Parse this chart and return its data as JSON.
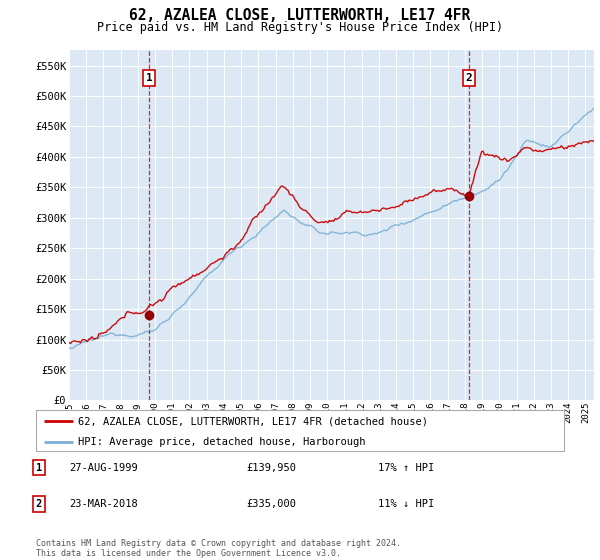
{
  "title": "62, AZALEA CLOSE, LUTTERWORTH, LE17 4FR",
  "subtitle": "Price paid vs. HM Land Registry's House Price Index (HPI)",
  "ylabel_ticks": [
    "£0",
    "£50K",
    "£100K",
    "£150K",
    "£200K",
    "£250K",
    "£300K",
    "£350K",
    "£400K",
    "£450K",
    "£500K",
    "£550K"
  ],
  "ytick_values": [
    0,
    50000,
    100000,
    150000,
    200000,
    250000,
    300000,
    350000,
    400000,
    450000,
    500000,
    550000
  ],
  "ylim": [
    0,
    575000
  ],
  "plot_bg_color": "#dce9f5",
  "red_color": "#cc0000",
  "blue_color": "#7bafd4",
  "marker1_year": 1999.66,
  "marker1_price": 139950,
  "marker2_year": 2018.22,
  "marker2_price": 335000,
  "legend_line1": "62, AZALEA CLOSE, LUTTERWORTH, LE17 4FR (detached house)",
  "legend_line2": "HPI: Average price, detached house, Harborough",
  "table_rows": [
    {
      "num": "1",
      "date": "27-AUG-1999",
      "price": "£139,950",
      "hpi": "17% ↑ HPI"
    },
    {
      "num": "2",
      "date": "23-MAR-2018",
      "price": "£335,000",
      "hpi": "11% ↓ HPI"
    }
  ],
  "footer": "Contains HM Land Registry data © Crown copyright and database right 2024.\nThis data is licensed under the Open Government Licence v3.0.",
  "xstart": 1995.0,
  "xend": 2025.5
}
